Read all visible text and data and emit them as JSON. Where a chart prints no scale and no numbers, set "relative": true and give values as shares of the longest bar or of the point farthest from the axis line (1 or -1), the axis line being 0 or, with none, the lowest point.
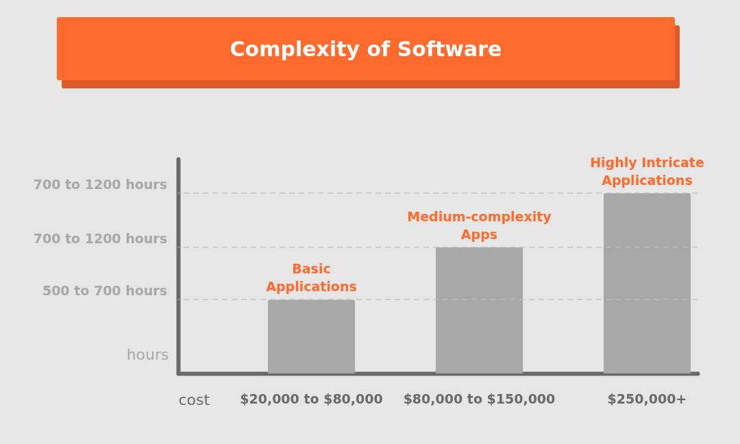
{
  "chart_data": {
    "type": "bar",
    "title": "Complexity of Software",
    "xlabel": "cost",
    "ylabel": "hours",
    "relative": true,
    "categories": [
      "$20,000 to $80,000",
      "$80,000 to $150,000",
      "$250,000+"
    ],
    "values": [
      0.41,
      0.7,
      1
    ],
    "color": "#a8a8a8",
    "grid": false,
    "ref_lines": [
      {
        "axis": "y",
        "value": 0.41,
        "label": "500 to 700 hours",
        "color": "#bdbdbd",
        "line_style": "dashed"
      },
      {
        "axis": "y",
        "value": 0.7,
        "label": "700 to 1200 hours",
        "color": "#bdbdbd",
        "line_style": "dashed"
      },
      {
        "axis": "y",
        "value": 1,
        "label": "700 to 1200 hours",
        "color": "#bdbdbd",
        "line_style": "dashed"
      }
    ],
    "annotations": [
      {
        "text": "Basic Applications",
        "x": "$20,000 to $80,000",
        "y": 0.41
      },
      {
        "text": "Medium-complexity Apps",
        "x": "$80,000 to $150,000",
        "y": 0.7
      },
      {
        "text": "Highly Intricate Applications",
        "x": "$250,000+",
        "y": 1
      }
    ]
  }
}
